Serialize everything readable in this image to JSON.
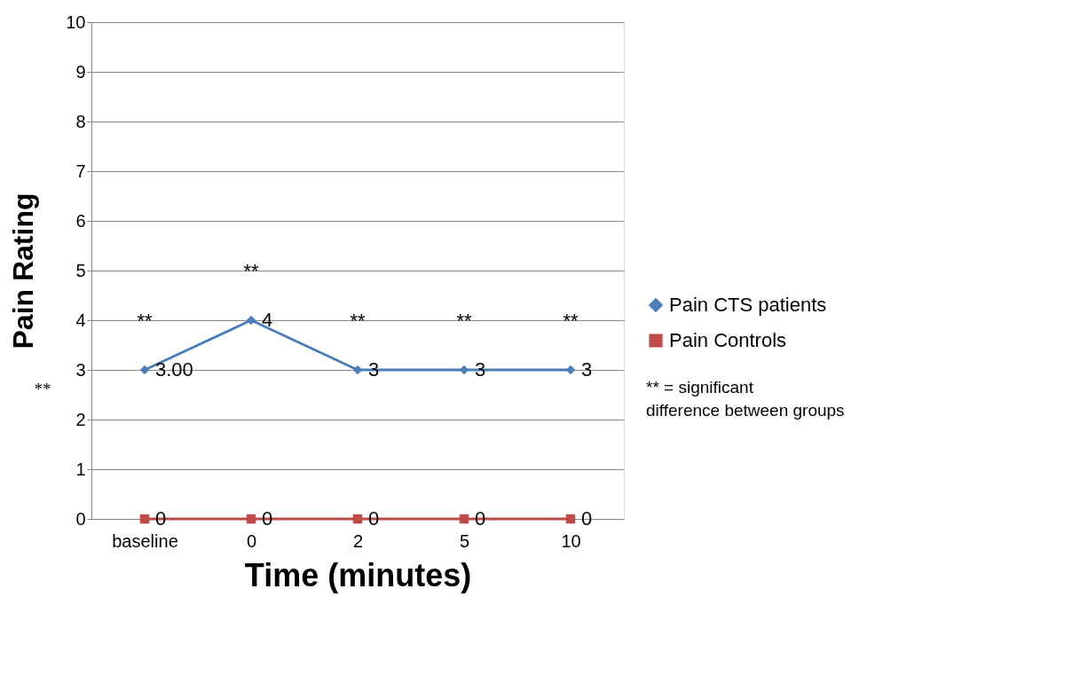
{
  "chart_data": {
    "type": "line",
    "xlabel": "Time (minutes)",
    "ylabel": "Pain Rating",
    "categories": [
      "baseline",
      "0",
      "2",
      "5",
      "10"
    ],
    "series": [
      {
        "name": "Pain CTS patients",
        "color": "#4a7ebb",
        "marker": "diamond",
        "values": [
          3,
          4,
          3,
          3,
          3
        ],
        "value_labels": [
          "3.00",
          "4",
          "3",
          "3",
          "3"
        ]
      },
      {
        "name": "Pain Controls",
        "color": "#be4b48",
        "marker": "square",
        "values": [
          0,
          0,
          0,
          0,
          0
        ],
        "value_labels": [
          "0",
          "0",
          "0",
          "0",
          "0"
        ]
      }
    ],
    "ylim": [
      0,
      10
    ],
    "yticks": [
      0,
      1,
      2,
      3,
      4,
      5,
      6,
      7,
      8,
      9,
      10
    ],
    "grid": "y",
    "legend": "right",
    "annotations": [
      "**",
      "**",
      "**",
      "**",
      "**",
      "**",
      "** = significant difference between groups"
    ]
  }
}
